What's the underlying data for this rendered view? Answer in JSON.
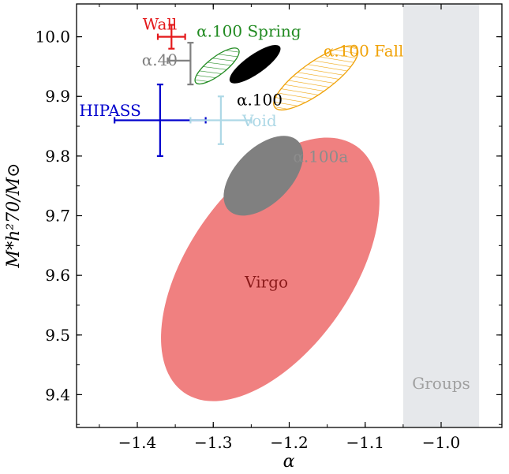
{
  "chart_data": {
    "type": "scatter",
    "xlabel": "α",
    "ylabel": "M*h²70/M⊙",
    "xlim": [
      -1.48,
      -0.92
    ],
    "ylim": [
      9.345,
      10.055
    ],
    "xticks": [
      -1.4,
      -1.3,
      -1.2,
      -1.1,
      -1.0
    ],
    "xtick_labels": [
      "−1.4",
      "−1.3",
      "−1.2",
      "−1.1",
      "−1.0"
    ],
    "yticks": [
      9.4,
      9.5,
      9.6,
      9.7,
      9.8,
      9.9,
      10.0
    ],
    "ytick_labels": [
      "9.4",
      "9.5",
      "9.6",
      "9.7",
      "9.8",
      "9.9",
      "10.0"
    ],
    "grid": false,
    "bands": [
      {
        "label": "Groups",
        "x_range": [
          -1.05,
          -0.95
        ],
        "color": "#e6e8eb",
        "label_color": "#a0a0a0"
      }
    ],
    "ellipses": [
      {
        "label": "Virgo",
        "center": [
          -1.225,
          9.61
        ],
        "half_width_x": 0.088,
        "half_height_y": 0.25,
        "tilt": 0.64,
        "style": "filled",
        "color": "#f08080",
        "label_color": "#8b1a1a"
      },
      {
        "label": "α.100a",
        "center": [
          -1.234,
          9.767
        ],
        "half_width_x": 0.038,
        "half_height_y": 0.075,
        "tilt": 0.65,
        "style": "filled",
        "color": "#808080",
        "label_color": "#8c8c8c"
      },
      {
        "label": "α.100 Spring",
        "center": [
          -1.295,
          9.951
        ],
        "half_width_x": 0.03,
        "half_height_y": 0.031,
        "tilt": 0.95,
        "style": "hatched",
        "color": "#228b22",
        "label_color": "#228b22"
      },
      {
        "label": "α.100",
        "center": [
          -1.245,
          9.954
        ],
        "half_width_x": 0.035,
        "half_height_y": 0.033,
        "tilt": 0.95,
        "style": "filled",
        "color": "#000000",
        "label_color": "#000000"
      },
      {
        "label": "α.100 Fall",
        "center": [
          -1.165,
          9.931
        ],
        "half_width_x": 0.058,
        "half_height_y": 0.055,
        "tilt": 0.96,
        "style": "hatched",
        "color": "#f0a30a",
        "label_color": "#f0a30a"
      }
    ],
    "points": [
      {
        "label": "Wall",
        "x": -1.355,
        "y": 10.0,
        "x_err": [
          0.018,
          0.018
        ],
        "y_err": [
          0.02,
          0.02
        ],
        "color": "#e41a1c"
      },
      {
        "label": "α.40",
        "x": -1.33,
        "y": 9.96,
        "x_err": [
          0.03,
          0.0
        ],
        "y_err": [
          0.04,
          0.03
        ],
        "color": "#808080"
      },
      {
        "label": "HIPASS",
        "x": -1.37,
        "y": 9.86,
        "x_err": [
          0.06,
          0.06
        ],
        "y_err": [
          0.06,
          0.06
        ],
        "color": "#0000cd"
      },
      {
        "label": "Void",
        "x": -1.29,
        "y": 9.86,
        "x_err": [
          0.04,
          0.04
        ],
        "y_err": [
          0.04,
          0.04
        ],
        "color": "#add8e6"
      }
    ]
  }
}
